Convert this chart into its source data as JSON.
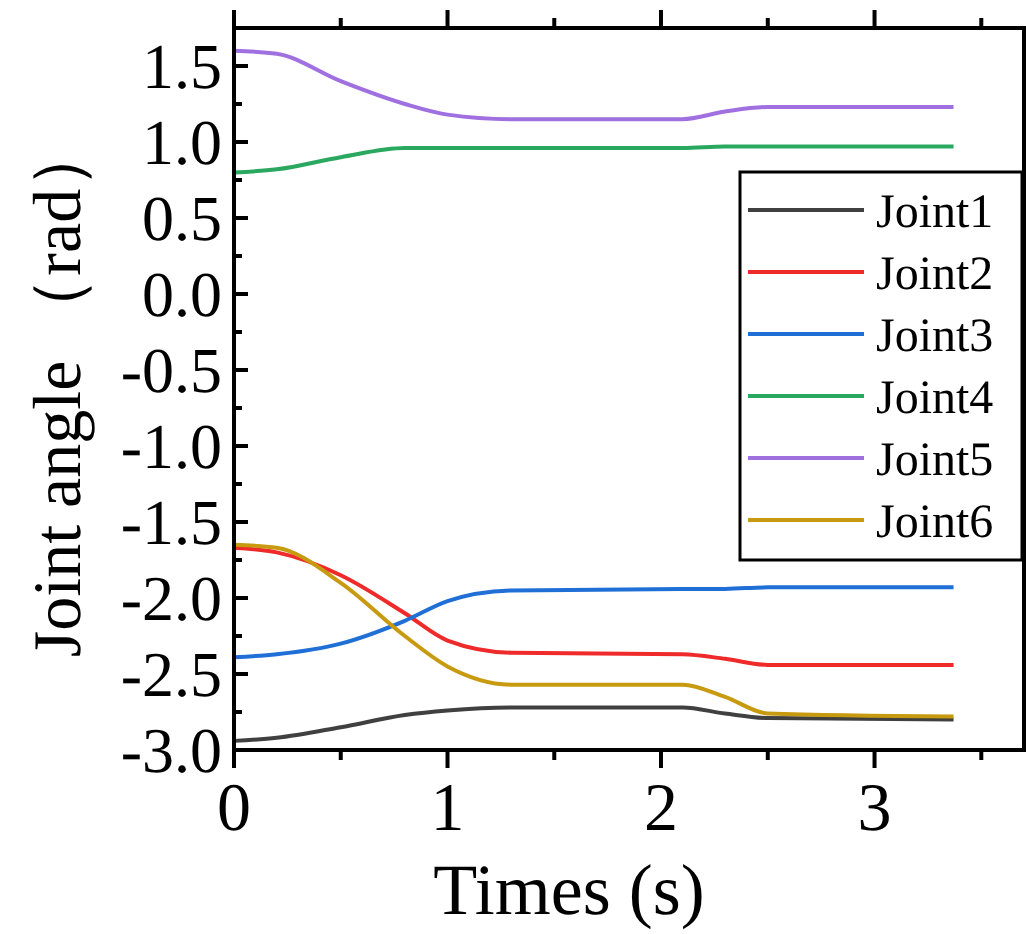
{
  "chart_data": {
    "type": "line",
    "xlabel": "Times (s)",
    "ylabel": "Joint angle （rad）",
    "xlim": [
      0,
      3.7
    ],
    "ylim": [
      -3.0,
      1.75
    ],
    "xticks": [
      0,
      {
        "value": 0.5,
        "label": null
      },
      1,
      {
        "value": 1.5,
        "label": null
      },
      2,
      {
        "value": 2.5,
        "label": null
      },
      3,
      {
        "value": 3.5,
        "label": null
      }
    ],
    "yticks": [
      {
        "value": -3.0,
        "label": "-3.0"
      },
      {
        "value": -2.75,
        "label": null
      },
      {
        "value": -2.5,
        "label": "-2.5"
      },
      {
        "value": -2.25,
        "label": null
      },
      {
        "value": -2.0,
        "label": "-2.0"
      },
      {
        "value": -1.75,
        "label": null
      },
      {
        "value": -1.5,
        "label": "-1.5"
      },
      {
        "value": -1.25,
        "label": null
      },
      {
        "value": -1.0,
        "label": "-1.0"
      },
      {
        "value": -0.75,
        "label": null
      },
      {
        "value": -0.5,
        "label": "-0.5"
      },
      {
        "value": -0.25,
        "label": null
      },
      {
        "value": 0,
        "label": "0.0"
      },
      {
        "value": 0.25,
        "label": null
      },
      {
        "value": 0.5,
        "label": "0.5"
      },
      {
        "value": 0.75,
        "label": null
      },
      {
        "value": 1.0,
        "label": "1.0"
      },
      {
        "value": 1.25,
        "label": null
      },
      {
        "value": 1.5,
        "label": "1.5"
      }
    ],
    "grid": false,
    "legend": "right",
    "marker": "none",
    "line_style": "solid",
    "x": [
      0,
      0.2,
      0.5,
      0.8,
      1.0,
      1.3,
      2.1,
      2.3,
      2.5,
      3.37
    ],
    "series": [
      {
        "name": "Joint1",
        "color": "#404040",
        "values": [
          -2.94,
          -2.92,
          -2.85,
          -2.77,
          -2.74,
          -2.72,
          -2.72,
          -2.76,
          -2.79,
          -2.8
        ]
      },
      {
        "name": "Joint2",
        "color": "#ee2a2a",
        "values": [
          -1.67,
          -1.7,
          -1.85,
          -2.1,
          -2.28,
          -2.36,
          -2.37,
          -2.4,
          -2.44,
          -2.44
        ]
      },
      {
        "name": "Joint3",
        "color": "#1f6fd6",
        "values": [
          -2.39,
          -2.37,
          -2.3,
          -2.15,
          -2.02,
          -1.95,
          -1.94,
          -1.94,
          -1.93,
          -1.93
        ]
      },
      {
        "name": "Joint4",
        "color": "#2aa860",
        "values": [
          0.8,
          0.82,
          0.9,
          0.96,
          0.96,
          0.96,
          0.96,
          0.97,
          0.97,
          0.97
        ]
      },
      {
        "name": "Joint5",
        "color": "#a070e0",
        "values": [
          1.6,
          1.58,
          1.4,
          1.25,
          1.18,
          1.15,
          1.15,
          1.2,
          1.23,
          1.23
        ]
      },
      {
        "name": "Joint6",
        "color": "#c89a10",
        "values": [
          -1.65,
          -1.67,
          -1.9,
          -2.25,
          -2.45,
          -2.57,
          -2.57,
          -2.65,
          -2.76,
          -2.78
        ]
      }
    ]
  }
}
